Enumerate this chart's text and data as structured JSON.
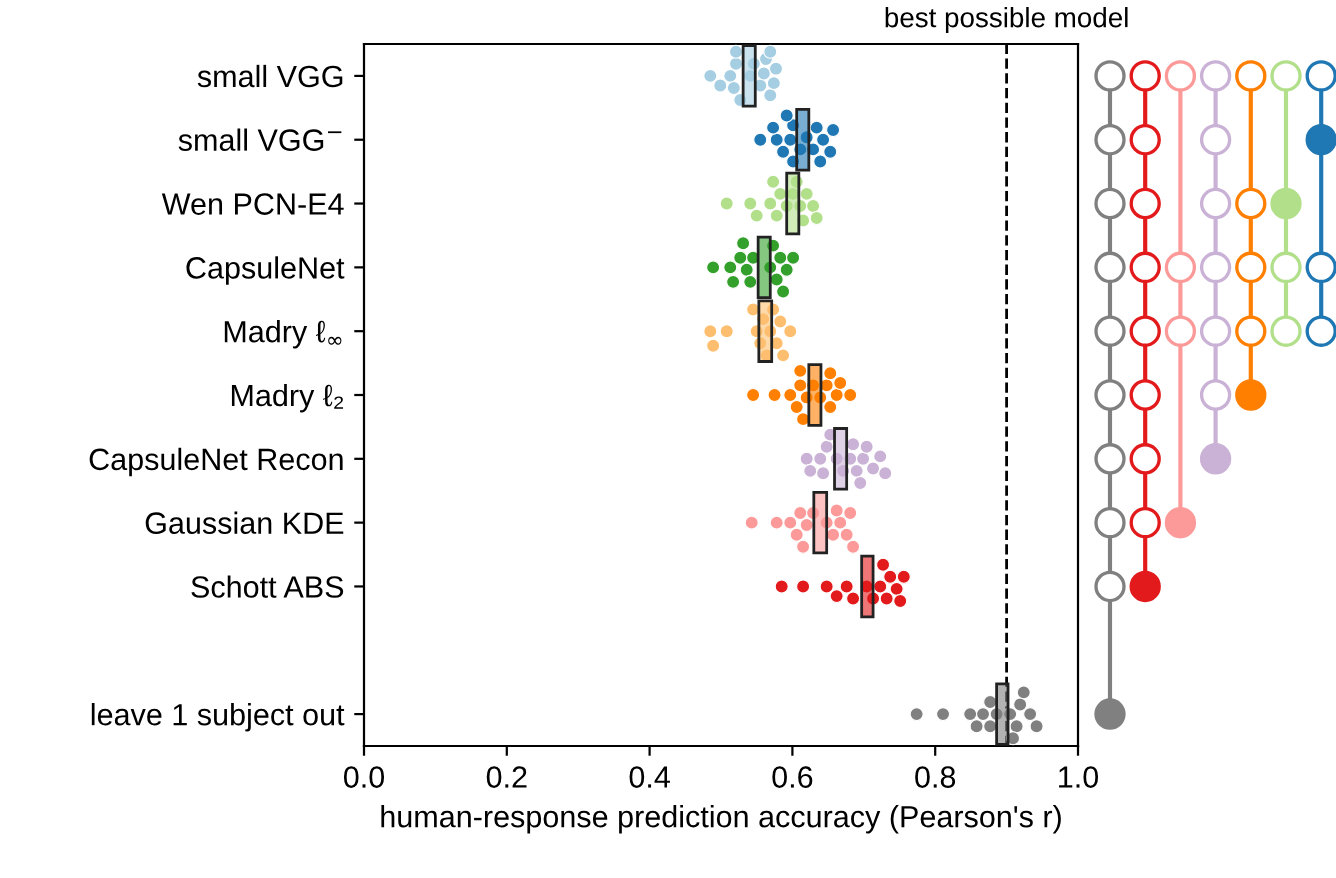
{
  "chart_data": {
    "type": "bar",
    "orientation": "horizontal",
    "xlabel": "human-response prediction accuracy (Pearson's r)",
    "categories": [
      "small VGG",
      "small VGG$^{−}$",
      "Wen PCN-E4",
      "CapsuleNet",
      "Madry ℓ$_{∞}$",
      "Madry ℓ₂",
      "CapsuleNet Recon",
      "Gaussian KDE",
      "Schott ABS",
      null,
      "leave 1 subject out"
    ],
    "xlim": [
      0,
      1
    ],
    "xticks": [
      {
        "value": 0,
        "label": "0.0"
      },
      {
        "value": 0.2,
        "label": "0.2"
      },
      {
        "value": 0.4,
        "label": "0.4"
      },
      {
        "value": 0.6,
        "label": "0.6"
      },
      {
        "value": 0.8,
        "label": "0.8"
      },
      {
        "value": 1,
        "label": "1.0"
      }
    ],
    "grid": false,
    "ref_lines": [
      {
        "axis": "x",
        "value": 0.9,
        "label": "best possible model",
        "color": "#000000",
        "line_style": "dashed"
      }
    ],
    "series": [
      {
        "base": [
          0.531,
          0.606,
          0.592,
          0.552,
          0.553,
          0.623,
          0.659,
          0.63,
          0.697,
          null,
          0.886
        ],
        "values": [
          0.017,
          0.017,
          0.017,
          0.017,
          0.018,
          0.017,
          0.017,
          0.018,
          0.016,
          null,
          0.016
        ],
        "colors": [
          "#a6cee3",
          "#1f78b4",
          "#b2df8a",
          "#33a02c",
          "#fdbf6f",
          "#ff7f00",
          "#cab2d6",
          "#fb9a99",
          "#e31a1c",
          null,
          "#808080"
        ]
      },
      {
        "type": "scatter",
        "color": "#a6cee3",
        "x": [
          "small VGG",
          "small VGG",
          "small VGG",
          "small VGG",
          "small VGG",
          "small VGG",
          "small VGG",
          "small VGG",
          "small VGG",
          "small VGG",
          "small VGG",
          "small VGG",
          "small VGG",
          "small VGG",
          "small VGG",
          "small VGG"
        ],
        "values": [
          0.485,
          0.499,
          0.513,
          0.518,
          0.521,
          0.527,
          0.541,
          0.555,
          0.56,
          0.563,
          0.569,
          0.574,
          0.577,
          0.569,
          0.521,
          0.546
        ]
      },
      {
        "type": "scatter",
        "color": "#1f78b4",
        "x": [
          "small VGG$^{−}$",
          "small VGG$^{−}$",
          "small VGG$^{−}$",
          "small VGG$^{−}$",
          "small VGG$^{−}$",
          "small VGG$^{−}$",
          "small VGG$^{−}$",
          "small VGG$^{−}$",
          "small VGG$^{−}$",
          "small VGG$^{−}$",
          "small VGG$^{−}$",
          "small VGG$^{−}$",
          "small VGG$^{−}$",
          "small VGG$^{−}$",
          "small VGG$^{−}$",
          "small VGG$^{−}$"
        ],
        "values": [
          0.555,
          0.578,
          0.587,
          0.597,
          0.601,
          0.611,
          0.62,
          0.629,
          0.634,
          0.639,
          0.643,
          0.653,
          0.657,
          0.573,
          0.601,
          0.592
        ]
      },
      {
        "type": "scatter",
        "color": "#b2df8a",
        "x": [
          "Wen PCN-E4",
          "Wen PCN-E4",
          "Wen PCN-E4",
          "Wen PCN-E4",
          "Wen PCN-E4",
          "Wen PCN-E4",
          "Wen PCN-E4",
          "Wen PCN-E4",
          "Wen PCN-E4",
          "Wen PCN-E4",
          "Wen PCN-E4",
          "Wen PCN-E4",
          "Wen PCN-E4",
          "Wen PCN-E4",
          "Wen PCN-E4"
        ],
        "values": [
          0.508,
          0.541,
          0.55,
          0.569,
          0.578,
          0.583,
          0.592,
          0.601,
          0.611,
          0.615,
          0.62,
          0.629,
          0.634,
          0.573,
          0.606
        ]
      },
      {
        "type": "scatter",
        "color": "#33a02c",
        "x": [
          "CapsuleNet",
          "CapsuleNet",
          "CapsuleNet",
          "CapsuleNet",
          "CapsuleNet",
          "CapsuleNet",
          "CapsuleNet",
          "CapsuleNet",
          "CapsuleNet",
          "CapsuleNet",
          "CapsuleNet",
          "CapsuleNet",
          "CapsuleNet",
          "CapsuleNet",
          "CapsuleNet"
        ],
        "values": [
          0.489,
          0.513,
          0.517,
          0.527,
          0.536,
          0.541,
          0.545,
          0.569,
          0.578,
          0.583,
          0.587,
          0.592,
          0.601,
          0.573,
          0.531
        ]
      },
      {
        "type": "scatter",
        "color": "#fdbf6f",
        "x": [
          "Madry ℓ$_{∞}$",
          "Madry ℓ$_{∞}$",
          "Madry ℓ$_{∞}$",
          "Madry ℓ$_{∞}$",
          "Madry ℓ$_{∞}$",
          "Madry ℓ$_{∞}$",
          "Madry ℓ$_{∞}$",
          "Madry ℓ$_{∞}$",
          "Madry ℓ$_{∞}$",
          "Madry ℓ$_{∞}$",
          "Madry ℓ$_{∞}$",
          "Madry ℓ$_{∞}$",
          "Madry ℓ$_{∞}$",
          "Madry ℓ$_{∞}$"
        ],
        "values": [
          0.485,
          0.489,
          0.508,
          0.55,
          0.555,
          0.559,
          0.564,
          0.569,
          0.578,
          0.583,
          0.587,
          0.597,
          0.573,
          0.545
        ]
      },
      {
        "type": "scatter",
        "color": "#ff7f00",
        "x": [
          "Madry ℓ₂",
          "Madry ℓ₂",
          "Madry ℓ₂",
          "Madry ℓ₂",
          "Madry ℓ₂",
          "Madry ℓ₂",
          "Madry ℓ₂",
          "Madry ℓ₂",
          "Madry ℓ₂",
          "Madry ℓ₂",
          "Madry ℓ₂",
          "Madry ℓ₂",
          "Madry ℓ₂",
          "Madry ℓ₂",
          "Madry ℓ₂",
          "Madry ℓ₂"
        ],
        "values": [
          0.545,
          0.575,
          0.597,
          0.606,
          0.611,
          0.615,
          0.62,
          0.629,
          0.639,
          0.648,
          0.653,
          0.662,
          0.667,
          0.681,
          0.611,
          0.653
        ]
      },
      {
        "type": "scatter",
        "color": "#cab2d6",
        "x": [
          "CapsuleNet Recon",
          "CapsuleNet Recon",
          "CapsuleNet Recon",
          "CapsuleNet Recon",
          "CapsuleNet Recon",
          "CapsuleNet Recon",
          "CapsuleNet Recon",
          "CapsuleNet Recon",
          "CapsuleNet Recon",
          "CapsuleNet Recon",
          "CapsuleNet Recon",
          "CapsuleNet Recon",
          "CapsuleNet Recon",
          "CapsuleNet Recon",
          "CapsuleNet Recon",
          "CapsuleNet Recon",
          "CapsuleNet Recon"
        ],
        "values": [
          0.62,
          0.625,
          0.639,
          0.643,
          0.648,
          0.653,
          0.662,
          0.671,
          0.681,
          0.685,
          0.69,
          0.695,
          0.699,
          0.704,
          0.713,
          0.723,
          0.73
        ]
      },
      {
        "type": "scatter",
        "color": "#fb9a99",
        "x": [
          "Gaussian KDE",
          "Gaussian KDE",
          "Gaussian KDE",
          "Gaussian KDE",
          "Gaussian KDE",
          "Gaussian KDE",
          "Gaussian KDE",
          "Gaussian KDE",
          "Gaussian KDE",
          "Gaussian KDE",
          "Gaussian KDE",
          "Gaussian KDE",
          "Gaussian KDE",
          "Gaussian KDE",
          "Gaussian KDE"
        ],
        "values": [
          0.543,
          0.578,
          0.597,
          0.606,
          0.611,
          0.62,
          0.629,
          0.648,
          0.657,
          0.667,
          0.676,
          0.681,
          0.685,
          0.615,
          0.662
        ]
      },
      {
        "type": "scatter",
        "color": "#e31a1c",
        "x": [
          "Schott ABS",
          "Schott ABS",
          "Schott ABS",
          "Schott ABS",
          "Schott ABS",
          "Schott ABS",
          "Schott ABS",
          "Schott ABS",
          "Schott ABS",
          "Schott ABS",
          "Schott ABS",
          "Schott ABS",
          "Schott ABS",
          "Schott ABS",
          "Schott ABS"
        ],
        "values": [
          0.585,
          0.615,
          0.648,
          0.662,
          0.676,
          0.685,
          0.704,
          0.713,
          0.723,
          0.732,
          0.737,
          0.746,
          0.751,
          0.756,
          0.727
        ]
      },
      {
        "type": "scatter",
        "color": "#808080",
        "x": [
          "leave 1 subject out",
          "leave 1 subject out",
          "leave 1 subject out",
          "leave 1 subject out",
          "leave 1 subject out",
          "leave 1 subject out",
          "leave 1 subject out",
          "leave 1 subject out",
          "leave 1 subject out",
          "leave 1 subject out",
          "leave 1 subject out",
          "leave 1 subject out",
          "leave 1 subject out",
          "leave 1 subject out",
          "leave 1 subject out"
        ],
        "values": [
          0.774,
          0.811,
          0.849,
          0.858,
          0.867,
          0.877,
          0.886,
          0.905,
          0.914,
          0.919,
          0.924,
          0.933,
          0.942,
          0.877,
          0.909
        ]
      }
    ]
  }
}
